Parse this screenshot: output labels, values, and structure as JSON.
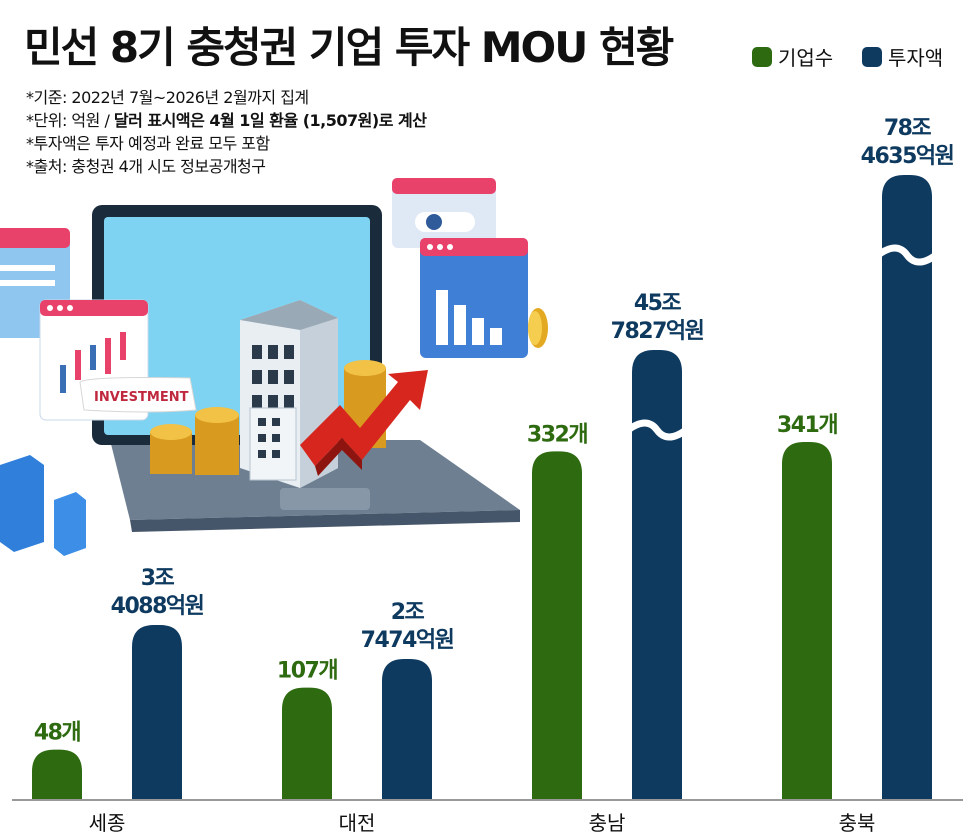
{
  "title": "민선 8기 충청권 기업 투자 MOU 현황",
  "legend": {
    "companies": "기업수",
    "investment": "투자액"
  },
  "notes": {
    "line1": "*기준: 2022년 7월~2026년 2월까지 집계",
    "line2_prefix": "*단위: 억원 / ",
    "line2_bold": "달러 표시액은 4월 1일 환율 (1,507원)로 계산",
    "line3": "*투자액은 투자 예정과 완료 모두 포함",
    "line4": "*출처: 충청권 4개 시도 정보공개청구"
  },
  "illustration": {
    "sign_text": "INVESTMENT"
  },
  "colors": {
    "green": "#2d6a10",
    "navy": "#0f3a60",
    "axis": "#999999"
  },
  "chart_data": {
    "type": "bar",
    "categories": [
      "세종",
      "대전",
      "충남",
      "충북"
    ],
    "series": [
      {
        "name": "기업수",
        "unit": "개",
        "values": [
          48,
          107,
          332,
          341
        ],
        "labels": [
          "48개",
          "107개",
          "332개",
          "341개"
        ]
      },
      {
        "name": "투자액",
        "unit": "억원",
        "values": [
          34088,
          27474,
          457827,
          784635
        ],
        "labels": [
          [
            "3조",
            "4088억원"
          ],
          [
            "2조",
            "7474억원"
          ],
          [
            "45조",
            "7827억원"
          ],
          [
            "78조",
            "4635억원"
          ]
        ],
        "broken_axis": [
          false,
          false,
          true,
          true
        ]
      }
    ],
    "title": "민선 8기 충청권 기업 투자 MOU 현황",
    "legend_position": "top-right",
    "grid": false
  }
}
